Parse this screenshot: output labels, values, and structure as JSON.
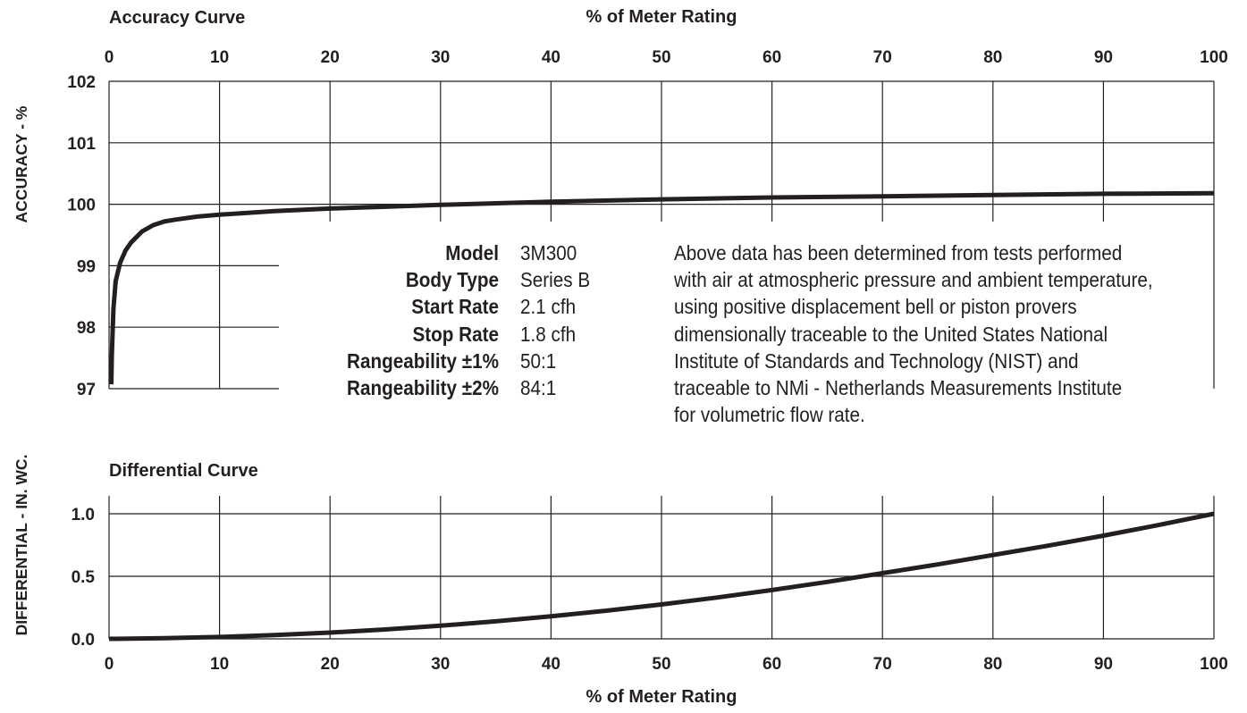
{
  "accuracy_title": "Accuracy Curve",
  "differential_title": "Differential Curve",
  "top_xlabel": "% of Meter Rating",
  "bottom_xlabel": "% of Meter Rating",
  "accuracy_ylabel": "ACCURACY - %",
  "differential_ylabel": "DIFFERENTIAL - IN. WC.",
  "specs": [
    {
      "label": "Model",
      "value": "3M300"
    },
    {
      "label": "Body Type",
      "value": "Series B"
    },
    {
      "label": "Start Rate",
      "value": "2.1 cfh"
    },
    {
      "label": "Stop Rate",
      "value": "1.8 cfh"
    },
    {
      "label": "Rangeability ±1%",
      "value": "50:1"
    },
    {
      "label": "Rangeability ±2%",
      "value": "84:1"
    }
  ],
  "note_lines": [
    "Above data has been determined from tests performed",
    "with air at atmospheric pressure and ambient temperature,",
    "using positive displacement bell or piston provers",
    "dimensionally traceable to the United States National",
    "Institute of Standards and Technology (NIST) and",
    "traceable to NMi - Netherlands Measurements Institute",
    "for volumetric flow rate."
  ],
  "chart_data": [
    {
      "type": "line",
      "title": "Accuracy Curve",
      "xlabel": "% of Meter Rating",
      "ylabel": "ACCURACY - %",
      "xlim": [
        0,
        100
      ],
      "ylim": [
        97,
        102
      ],
      "xticks": [
        0,
        10,
        20,
        30,
        40,
        50,
        60,
        70,
        80,
        90,
        100
      ],
      "yticks": [
        97,
        98,
        99,
        100,
        101,
        102
      ],
      "grid": true,
      "series": [
        {
          "x": [
            0.2,
            0.25,
            0.4,
            0.6,
            1.0,
            1.5,
            2.0,
            3.0,
            4.0,
            5.0,
            6.0,
            8.0,
            10,
            15,
            20,
            25,
            30,
            40,
            50,
            60,
            70,
            80,
            90,
            100
          ],
          "y": [
            97.07,
            97.55,
            98.3,
            98.75,
            99.05,
            99.25,
            99.38,
            99.56,
            99.66,
            99.72,
            99.75,
            99.8,
            99.83,
            99.89,
            99.93,
            99.96,
            99.99,
            100.04,
            100.08,
            100.11,
            100.13,
            100.15,
            100.17,
            100.18
          ]
        }
      ]
    },
    {
      "type": "line",
      "title": "Differential Curve",
      "xlabel": "% of Meter Rating",
      "ylabel": "DIFFERENTIAL - IN. WC.",
      "xlim": [
        0,
        100
      ],
      "ylim": [
        0.0,
        1.0
      ],
      "xticks": [
        0,
        10,
        20,
        30,
        40,
        50,
        60,
        70,
        80,
        90,
        100
      ],
      "yticks": [
        "0.0",
        "0.5",
        "1.0"
      ],
      "grid": true,
      "series": [
        {
          "x": [
            0,
            5,
            10,
            15,
            20,
            25,
            30,
            35,
            40,
            45,
            50,
            55,
            60,
            65,
            70,
            75,
            80,
            85,
            90,
            95,
            100
          ],
          "y": [
            0.0,
            0.005,
            0.015,
            0.03,
            0.05,
            0.075,
            0.105,
            0.14,
            0.18,
            0.225,
            0.275,
            0.33,
            0.39,
            0.455,
            0.525,
            0.595,
            0.67,
            0.745,
            0.825,
            0.91,
            1.0
          ]
        }
      ]
    }
  ]
}
